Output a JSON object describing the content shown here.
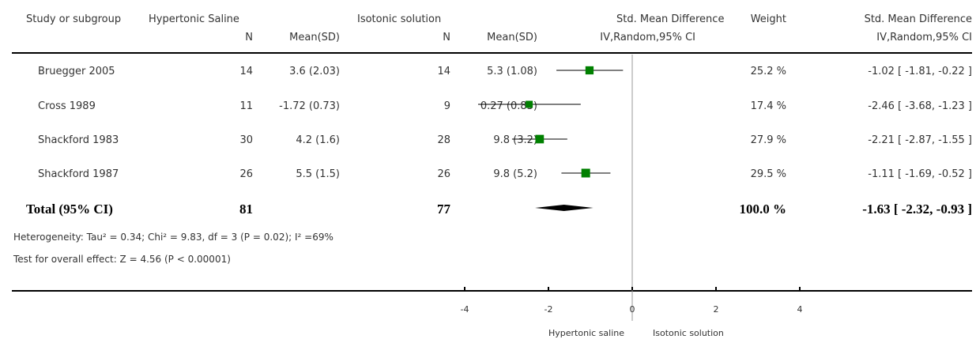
{
  "header": {
    "study": "Study or subgroup",
    "group1": "Hypertonic Saline",
    "group2": "Isotonic solution",
    "n": "N",
    "meansd": "Mean(SD)",
    "smd": "Std. Mean Difference",
    "method": "IV,Random,95% CI",
    "weight": "Weight"
  },
  "rows": [
    {
      "study": "Bruegger 2005",
      "n1": "14",
      "m1": "3.6 (2.03)",
      "n2": "14",
      "m2": "5.3 (1.08)",
      "weight": "25.2 %",
      "ci": "-1.02 [ -1.81, -0.22 ]"
    },
    {
      "study": "Cross 1989",
      "n1": "11",
      "m1": "-1.72 (0.73)",
      "n2": "9",
      "m2": "0.27 (0.83)",
      "weight": "17.4 %",
      "ci": "-2.46 [ -3.68, -1.23 ]"
    },
    {
      "study": "Shackford 1983",
      "n1": "30",
      "m1": "4.2 (1.6)",
      "n2": "28",
      "m2": "9.8 (3.2)",
      "weight": "27.9 %",
      "ci": "-2.21 [ -2.87, -1.55 ]"
    },
    {
      "study": "Shackford 1987",
      "n1": "26",
      "m1": "5.5 (1.5)",
      "n2": "26",
      "m2": "9.8 (5.2)",
      "weight": "29.5 %",
      "ci": "-1.11 [ -1.69, -0.52 ]"
    }
  ],
  "total": {
    "label": "Total (95% CI)",
    "n1": "81",
    "n2": "77",
    "weight": "100.0 %",
    "ci": "-1.63 [ -2.32, -0.93 ]"
  },
  "heterogeneity": "Heterogeneity: Tau² = 0.34; Chi² = 9.83, df = 3 (P = 0.02); I² =69%",
  "overall_effect": "Test for overall effect: Z = 4.56 (P < 0.00001)",
  "axis_labels": {
    "left": "Hypertonic saline",
    "right": "Isotonic solution"
  },
  "colors": {
    "marker": "#008000",
    "line": "#000000",
    "zero_line": "#999999",
    "text": "#333333"
  },
  "chart_data": {
    "type": "scatter",
    "subtype": "forest-plot",
    "x_ticks": [
      -4,
      -2,
      0,
      2,
      4
    ],
    "xlim": [
      -4,
      4
    ],
    "studies": [
      {
        "name": "Bruegger 2005",
        "estimate": -1.02,
        "lower": -1.81,
        "upper": -0.22,
        "weight": 25.2
      },
      {
        "name": "Cross 1989",
        "estimate": -2.46,
        "lower": -3.68,
        "upper": -1.23,
        "weight": 17.4
      },
      {
        "name": "Shackford 1983",
        "estimate": -2.21,
        "lower": -2.87,
        "upper": -1.55,
        "weight": 27.9
      },
      {
        "name": "Shackford 1987",
        "estimate": -1.11,
        "lower": -1.69,
        "upper": -0.52,
        "weight": 29.5
      }
    ],
    "pooled": {
      "name": "Total (95% CI)",
      "estimate": -1.63,
      "lower": -2.32,
      "upper": -0.93,
      "weight": 100.0
    }
  }
}
